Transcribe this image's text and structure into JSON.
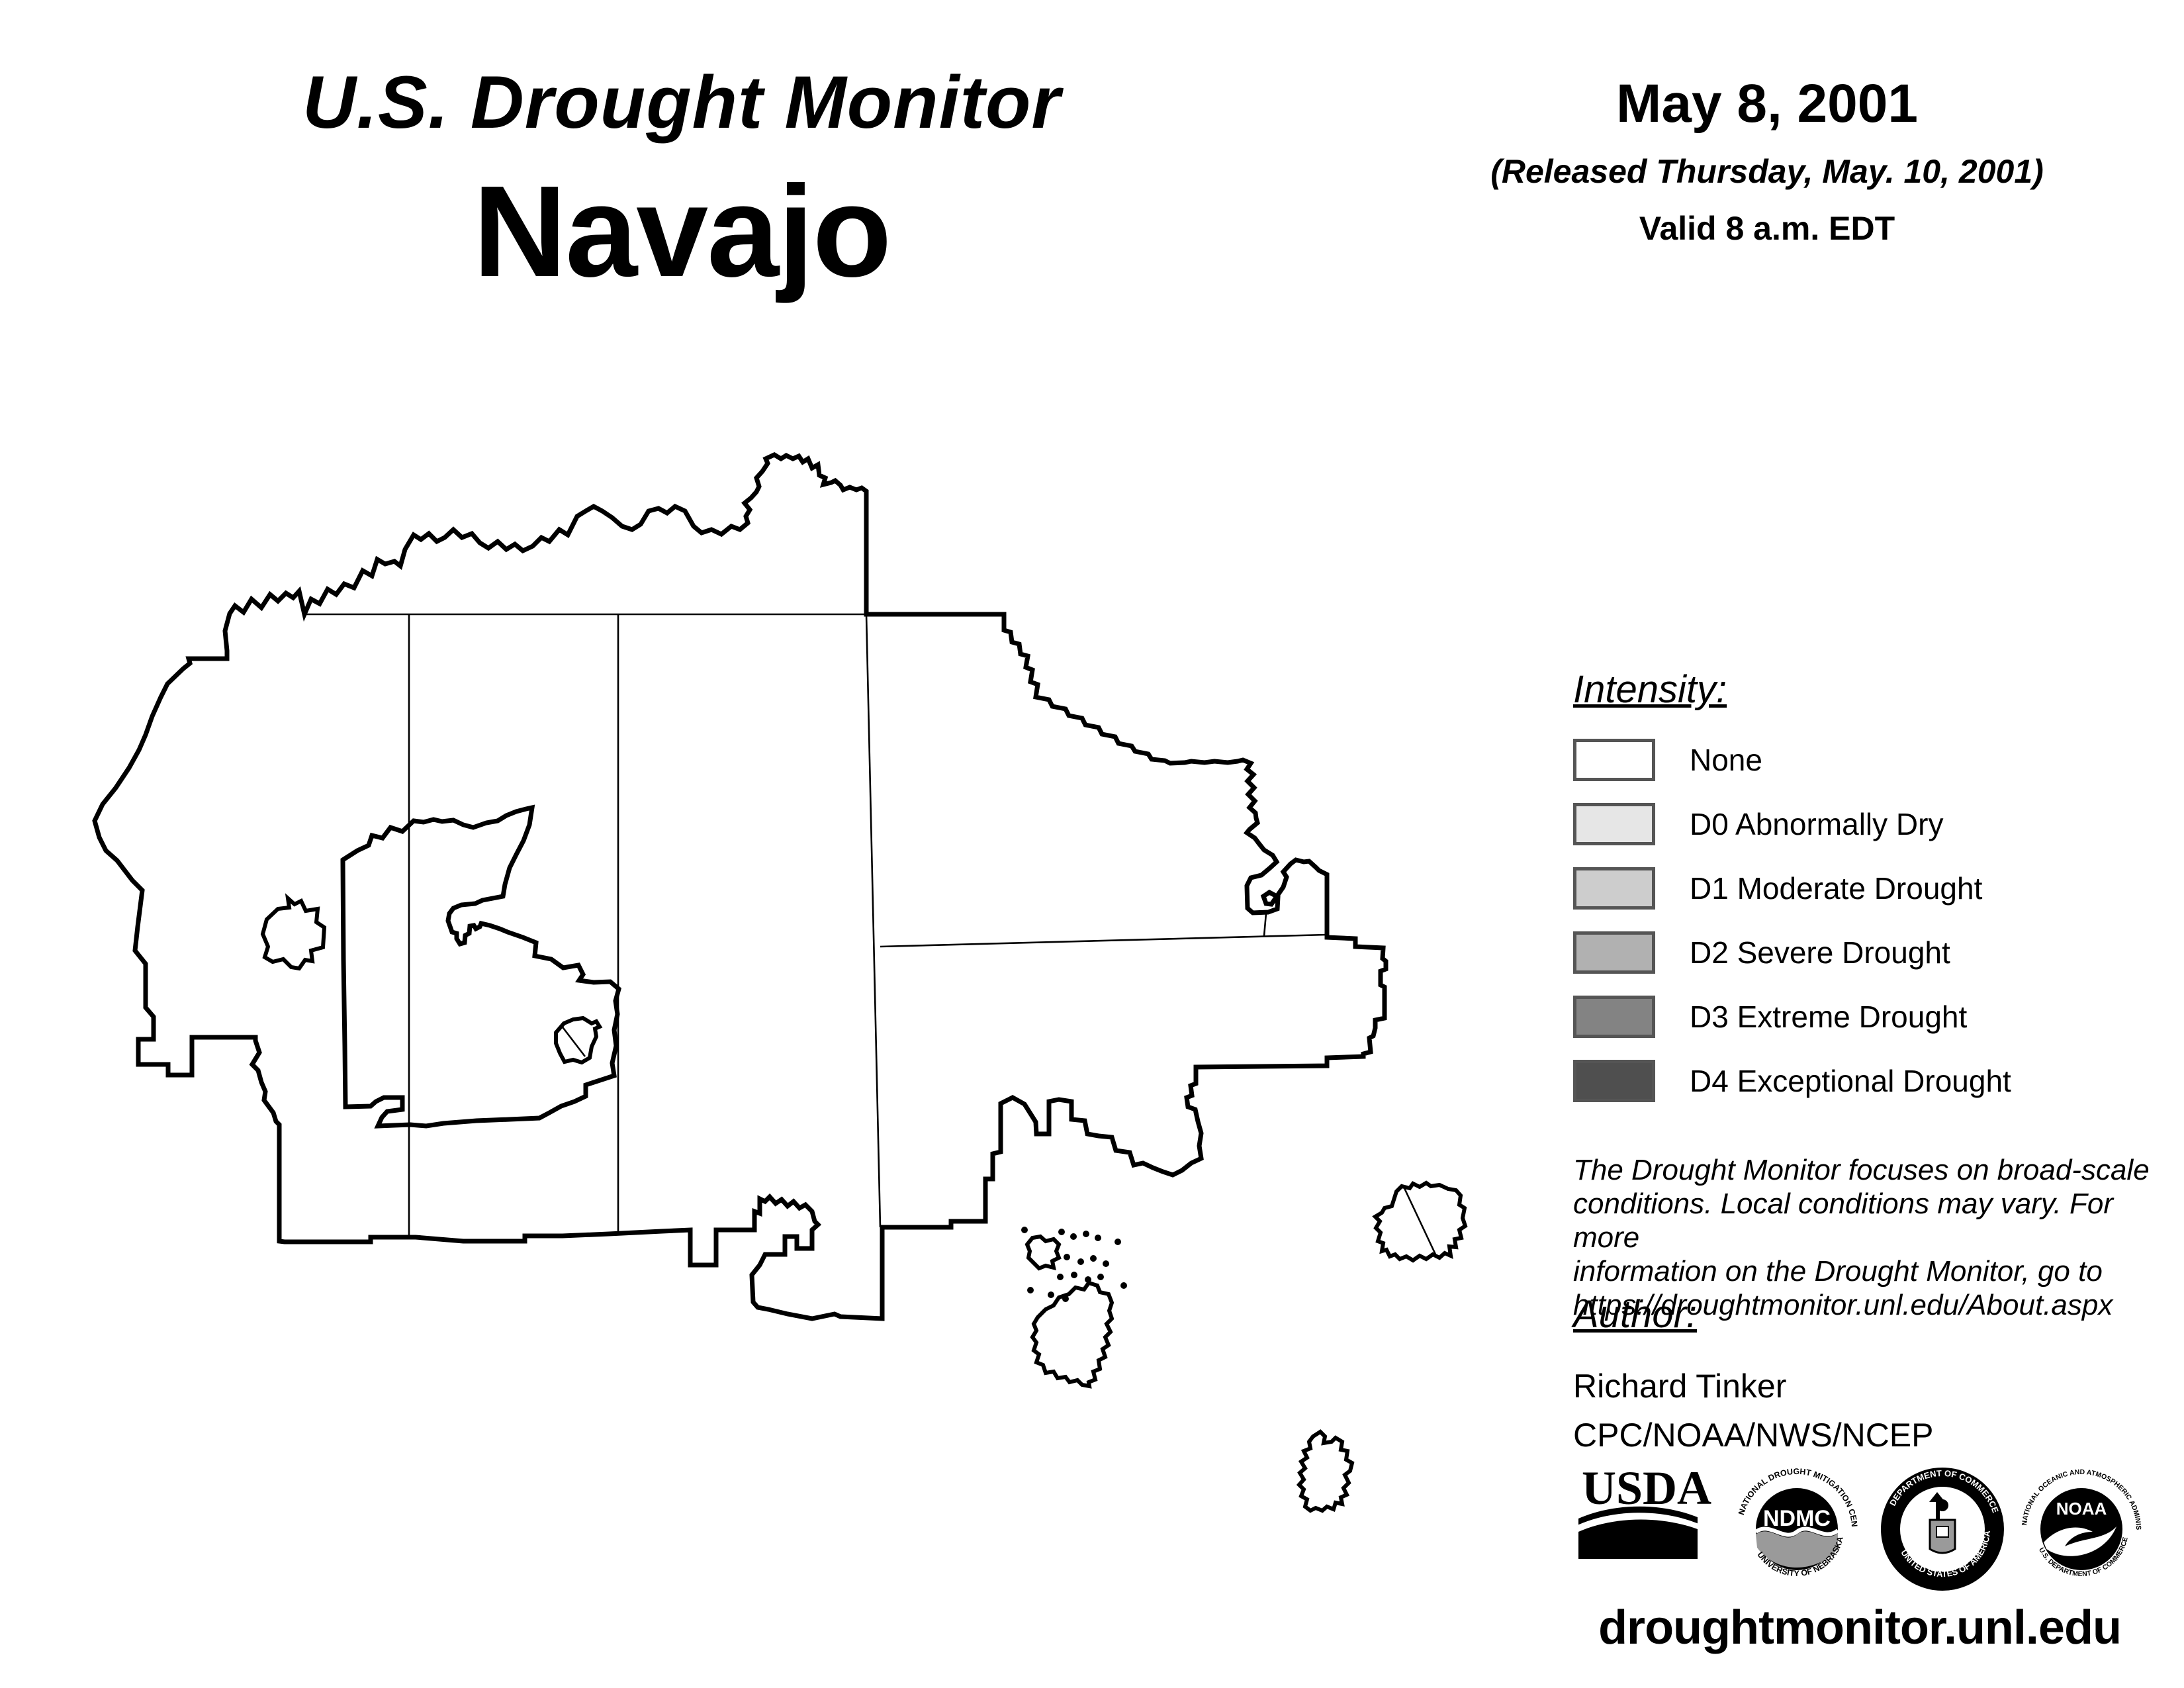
{
  "header": {
    "title": "U.S. Drought Monitor",
    "region": "Navajo",
    "date": "May 8, 2001",
    "released": "(Released Thursday, May. 10, 2001)",
    "valid": "Valid 8 a.m. EDT"
  },
  "legend": {
    "heading": "Intensity:",
    "items": [
      {
        "label": "None",
        "color": "#ffffff"
      },
      {
        "label": "D0 Abnormally Dry",
        "color": "#e6e6e6"
      },
      {
        "label": "D1 Moderate Drought",
        "color": "#cdcdcd"
      },
      {
        "label": "D2 Severe Drought",
        "color": "#b1b1b1"
      },
      {
        "label": "D3 Extreme Drought",
        "color": "#838383"
      },
      {
        "label": "D4 Exceptional Drought",
        "color": "#4f4f4f"
      }
    ],
    "swatch_border_color": "#555555"
  },
  "disclaimer": {
    "lines": [
      "The Drought Monitor focuses on broad-scale",
      "conditions. Local conditions may vary. For more",
      "information on the Drought Monitor, go to",
      "https://droughtmonitor.unl.edu/About.aspx"
    ]
  },
  "author": {
    "heading": "Author:",
    "name": "Richard Tinker",
    "org": "CPC/NOAA/NWS/NCEP"
  },
  "footer": {
    "url": "droughtmonitor.unl.edu"
  },
  "logos": {
    "usda": {
      "text": "USDA"
    },
    "ndmc": {
      "center": "NDMC",
      "top": "NATIONAL DROUGHT MITIGATION CENTER",
      "bottom": "UNIVERSITY OF NEBRASKA"
    },
    "doc": {
      "top": "DEPARTMENT OF COMMERCE",
      "bottom": "UNITED STATES OF AMERICA"
    },
    "noaa": {
      "center": "NOAA",
      "top": "NATIONAL OCEANIC AND ATMOSPHERIC ADMINISTRATION",
      "bottom": "U.S. DEPARTMENT OF COMMERCE"
    }
  }
}
